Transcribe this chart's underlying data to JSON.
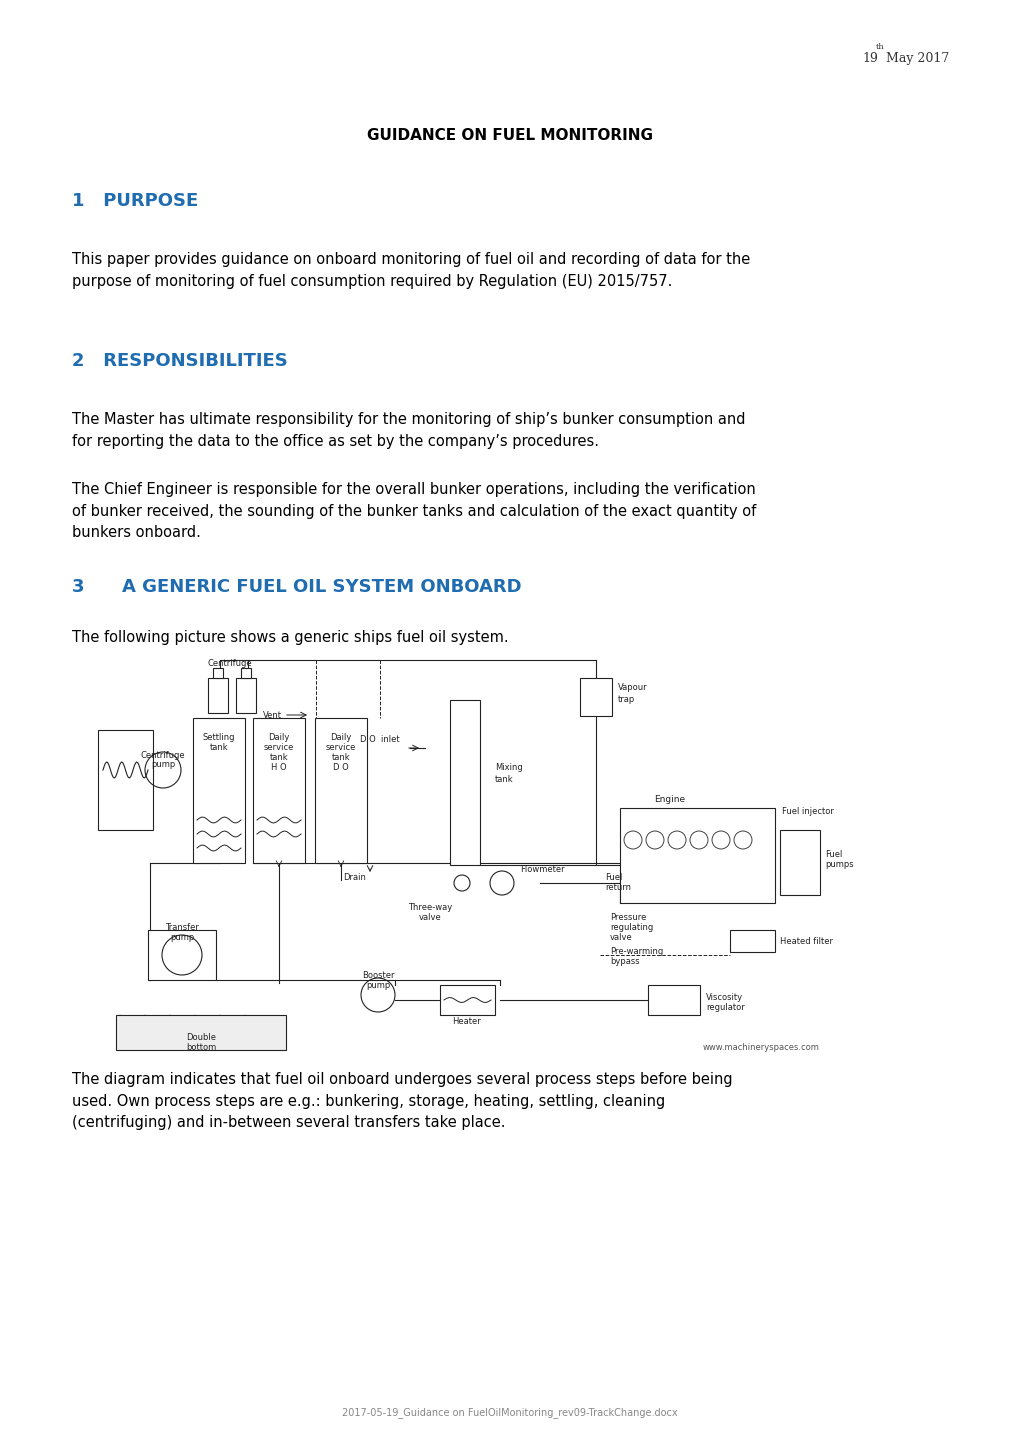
{
  "page_width": 10.2,
  "page_height": 14.41,
  "bg_color": "#ffffff",
  "date_text": "19",
  "date_sup": "th",
  "date_rest": " May 2017",
  "header_title": "GUIDANCE ON FUEL MONITORING",
  "section1_num": "1",
  "section1_title": "PURPOSE",
  "section1_body1": "This paper provides guidance on onboard monitoring of fuel oil and recording of data for the\npurpose of monitoring of fuel consumption required by Regulation (EU) 2015/757.",
  "section2_num": "2",
  "section2_title": "RESPONSIBILITIES",
  "section2_body1": "The Master has ultimate responsibility for the monitoring of ship’s bunker consumption and\nfor reporting the data to the office as set by the company’s procedures.",
  "section2_body2": "The Chief Engineer is responsible for the overall bunker operations, including the verification\nof bunker received, the sounding of the bunker tanks and calculation of the exact quantity of\nbunkers onboard.",
  "section3_num": "3",
  "section3_title": "A GENERIC FUEL OIL SYSTEM ONBOARD",
  "section3_intro": "The following picture shows a generic ships fuel oil system.",
  "section3_body": "The diagram indicates that fuel oil onboard undergoes several process steps before being\nused. Own process steps are e.g.: bunkering, storage, heating, settling, cleaning\n(centrifuging) and in-between several transfers take place.",
  "footer_text": "2017-05-19_Guidance on FuelOilMonitoring_rev09-TrackChange.docx",
  "heading_color": "#1F6CB0",
  "body_color": "#000000",
  "header_color": "#000000",
  "body_fontsize": 10.5,
  "heading_fontsize": 13,
  "header_fontsize": 11
}
